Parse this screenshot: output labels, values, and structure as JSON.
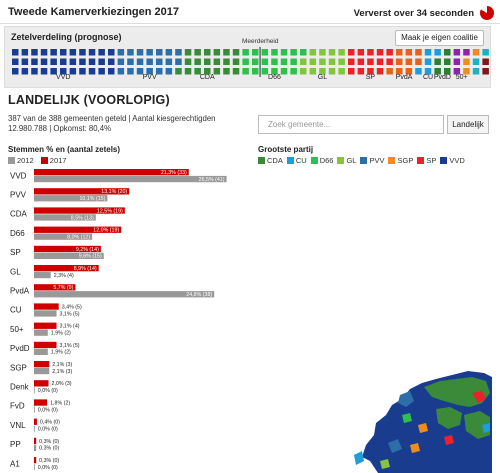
{
  "header": {
    "title": "Tweede Kamerverkiezingen 2017",
    "refresh_text": "Ververst over 34 seconden",
    "refresh_icon": "pie-timer-icon",
    "refresh_color": "#cc0000"
  },
  "seats": {
    "label": "Zetelverdeling (prognose)",
    "majority_label": "Meerderheid",
    "coalition_button": "Maak je eigen coalitie",
    "total": 150,
    "majority": 76,
    "parties": [
      {
        "name": "VVD",
        "seats": 33,
        "color": "#1a3c8f"
      },
      {
        "name": "PVV",
        "seats": 20,
        "color": "#2e6ea8"
      },
      {
        "name": "CDA",
        "seats": 19,
        "color": "#3a8a3a"
      },
      {
        "name": "D66",
        "seats": 19,
        "color": "#2fbf4f"
      },
      {
        "name": "GL",
        "seats": 14,
        "color": "#84c441"
      },
      {
        "name": "SP",
        "seats": 14,
        "color": "#e8232a"
      },
      {
        "name": "PvdA",
        "seats": 9,
        "color": "#e5621d"
      },
      {
        "name": "CU",
        "seats": 5,
        "color": "#1e9ed9"
      },
      {
        "name": "PvdD",
        "seats": 5,
        "color": "#2e7d32"
      },
      {
        "name": "50+",
        "seats": 4,
        "color": "#8e24aa"
      },
      {
        "name": "SGP",
        "seats": 3,
        "color": "#f08c1a"
      },
      {
        "name": "Denk",
        "seats": 3,
        "color": "#19b3c4"
      },
      {
        "name": "FvD",
        "seats": 2,
        "color": "#7a1a1a"
      }
    ],
    "visible_labels": [
      "VVD",
      "PVV",
      "CDA",
      "D66",
      "GL",
      "SP",
      "PvdA",
      "CU",
      "PvdD",
      "50+"
    ]
  },
  "overview": {
    "heading": "LANDELIJK (VOORLOPIG)",
    "counted_text": "387 van de 388 gemeenten geteld | Aantal kiesgerechtigden",
    "turnout_text": "12.980.788 | Opkomst: 80,4%",
    "search_placeholder": "Zoek gemeente...",
    "search_button": "Landelijk"
  },
  "votes": {
    "title": "Stemmen % en (aantal zetels)",
    "legend_2012": "2012",
    "legend_2017": "2017",
    "color_2012": "#999999",
    "color_2017": "#cc0000"
  },
  "grootste": {
    "title": "Grootste partij",
    "items": [
      {
        "name": "CDA",
        "color": "#3a8a3a"
      },
      {
        "name": "CU",
        "color": "#1e9ed9"
      },
      {
        "name": "D66",
        "color": "#2fbf4f"
      },
      {
        "name": "GL",
        "color": "#84c441"
      },
      {
        "name": "PVV",
        "color": "#2e6ea8"
      },
      {
        "name": "SGP",
        "color": "#f08c1a"
      },
      {
        "name": "SP",
        "color": "#e8232a"
      },
      {
        "name": "VVD",
        "color": "#1a3c8f"
      }
    ]
  },
  "chart_data": {
    "type": "bar",
    "title": "Stemmen % en (aantal zetels)",
    "xlabel": "",
    "ylabel": "",
    "categories": [
      "VVD",
      "PVV",
      "CDA",
      "D66",
      "SP",
      "GL",
      "PvdA",
      "CU",
      "50+",
      "PvdD",
      "SGP",
      "Denk",
      "FvD",
      "VNL",
      "PP",
      "A1"
    ],
    "series": [
      {
        "name": "2017",
        "values": [
          21.3,
          13.1,
          12.5,
          12.0,
          9.2,
          8.9,
          5.7,
          3.4,
          3.1,
          3.1,
          2.1,
          2.0,
          1.8,
          0.4,
          0.3,
          0.3
        ],
        "seats": [
          33,
          20,
          19,
          19,
          14,
          14,
          9,
          5,
          4,
          5,
          3,
          3,
          2,
          0,
          0,
          0
        ],
        "labels": [
          "21,3% (33)",
          "13,1% (20)",
          "12,5% (19)",
          "12,0% (19)",
          "9,2% (14)",
          "8,9% (14)",
          "5,7% (9)",
          "3,4% (5)",
          "3,1% (4)",
          "3,1% (5)",
          "2,1% (3)",
          "2,0% (3)",
          "1,8% (2)",
          "0,4% (0)",
          "0,3% (0)",
          "0,3% (0)"
        ]
      },
      {
        "name": "2012",
        "values": [
          26.5,
          10.1,
          8.5,
          8.0,
          9.6,
          2.3,
          24.8,
          3.1,
          1.9,
          1.9,
          2.1,
          0.0,
          0.0,
          0.0,
          0.3,
          0.0
        ],
        "seats": [
          41,
          15,
          13,
          12,
          15,
          4,
          38,
          5,
          2,
          2,
          3,
          0,
          0,
          0,
          0,
          0
        ],
        "labels": [
          "26,5% (41)",
          "10,1% (15)",
          "8,5% (13)",
          "8,0% (12)",
          "9,6% (15)",
          "2,3% (4)",
          "24,8% (38)",
          "3,1% (5)",
          "1,9% (2)",
          "1,9% (2)",
          "2,1% (3)",
          "0,0% (0)",
          "0,0% (0)",
          "0,0% (0)",
          "0,3% (0)",
          "0,0% (0)"
        ]
      }
    ],
    "xlim": [
      0,
      30
    ]
  }
}
